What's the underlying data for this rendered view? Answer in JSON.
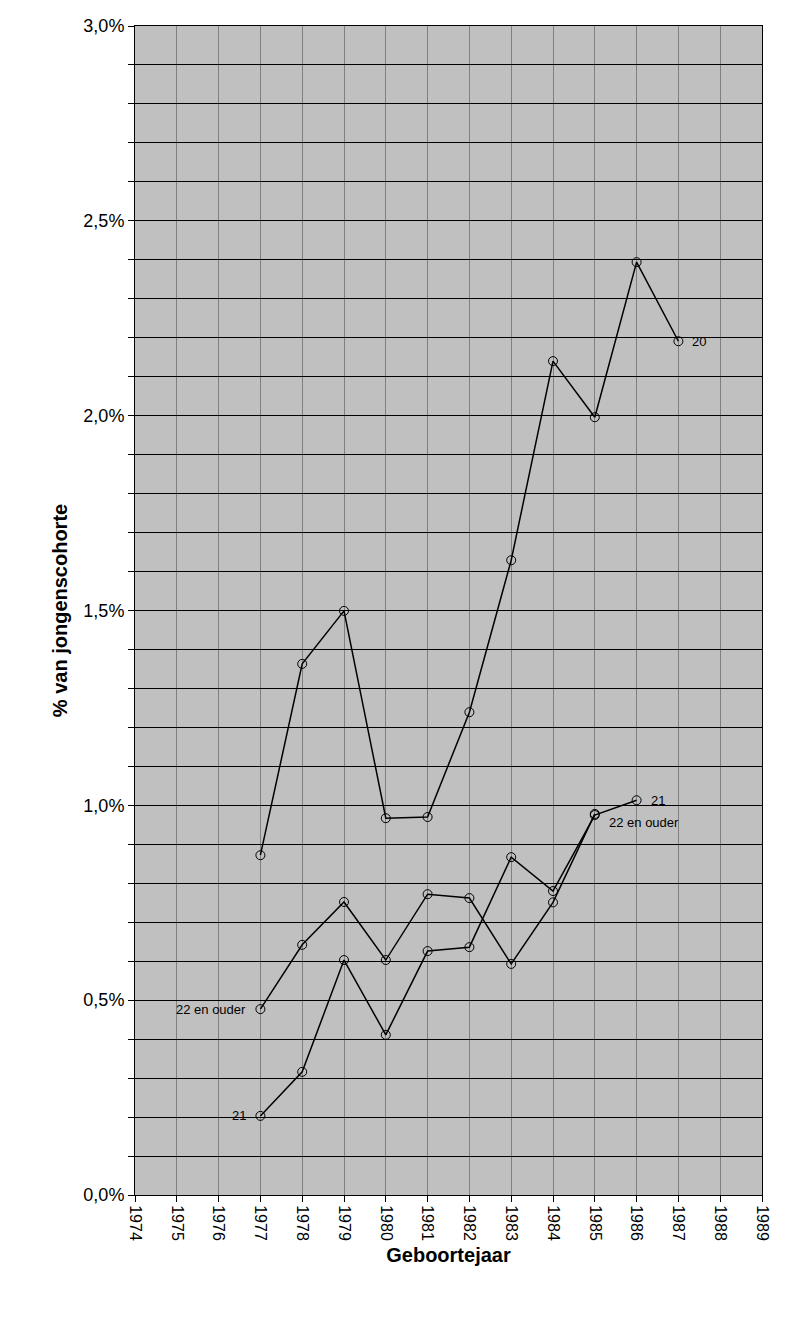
{
  "chart_data": {
    "type": "line",
    "x_title": "Geboortejaar",
    "y_title": "% van jongenscohorte",
    "x": [
      1977,
      1978,
      1979,
      1980,
      1981,
      1982,
      1983,
      1984,
      1985,
      1986,
      1987
    ],
    "series": [
      {
        "color": "#000000",
        "marker": "open-circle",
        "values": [
          0.872,
          1.363,
          1.499,
          0.967,
          0.97,
          1.239,
          1.629,
          2.14,
          1.996,
          2.394,
          2.191
        ]
      },
      {
        "color": "#000000",
        "marker": "open-circle",
        "values": [
          0.203,
          0.316,
          0.603,
          0.411,
          0.626,
          0.636,
          0.867,
          0.78,
          0.975,
          1.013,
          null
        ]
      },
      {
        "color": "#000000",
        "marker": "open-circle",
        "values": [
          0.477,
          0.642,
          0.752,
          0.603,
          0.772,
          0.762,
          0.593,
          0.751,
          0.978,
          null,
          null
        ]
      }
    ],
    "annotations": [
      {
        "text": "20",
        "x": 1987,
        "y": 2.191
      },
      {
        "text": "21",
        "x": 1986,
        "y": 1.013
      },
      {
        "text": "22 en ouder",
        "x": 1985,
        "y": 0.955
      },
      {
        "text": "22 en ouder",
        "x": 1977,
        "y": 0.477
      },
      {
        "text": "21",
        "x": 1977,
        "y": 0.203
      }
    ],
    "xlim": [
      1974,
      1989
    ],
    "xticks": [
      1974,
      1975,
      1976,
      1977,
      1978,
      1979,
      1980,
      1981,
      1982,
      1983,
      1984,
      1985,
      1986,
      1987,
      1988,
      1989
    ],
    "ylim": [
      0,
      3.0
    ],
    "yticks": [
      {
        "value": 0,
        "label": "0,0%"
      },
      {
        "value": 0.1,
        "label": null
      },
      {
        "value": 0.2,
        "label": null
      },
      {
        "value": 0.3,
        "label": null
      },
      {
        "value": 0.4,
        "label": null
      },
      {
        "value": 0.5,
        "label": "0,5%"
      },
      {
        "value": 0.6,
        "label": null
      },
      {
        "value": 0.7,
        "label": null
      },
      {
        "value": 0.8,
        "label": null
      },
      {
        "value": 0.9,
        "label": null
      },
      {
        "value": 1.0,
        "label": "1,0%"
      },
      {
        "value": 1.1,
        "label": null
      },
      {
        "value": 1.2,
        "label": null
      },
      {
        "value": 1.3,
        "label": null
      },
      {
        "value": 1.4,
        "label": null
      },
      {
        "value": 1.5,
        "label": "1,5%"
      },
      {
        "value": 1.6,
        "label": null
      },
      {
        "value": 1.7,
        "label": null
      },
      {
        "value": 1.8,
        "label": null
      },
      {
        "value": 1.9,
        "label": null
      },
      {
        "value": 2.0,
        "label": "2,0%"
      },
      {
        "value": 2.1,
        "label": null
      },
      {
        "value": 2.2,
        "label": null
      },
      {
        "value": 2.3,
        "label": null
      },
      {
        "value": 2.4,
        "label": null
      },
      {
        "value": 2.5,
        "label": "2,5%"
      },
      {
        "value": 2.6,
        "label": null
      },
      {
        "value": 2.7,
        "label": null
      },
      {
        "value": 2.8,
        "label": null
      },
      {
        "value": 2.9,
        "label": null
      },
      {
        "value": 3.0,
        "label": "3,0%"
      }
    ],
    "grid": true,
    "legend": false
  }
}
